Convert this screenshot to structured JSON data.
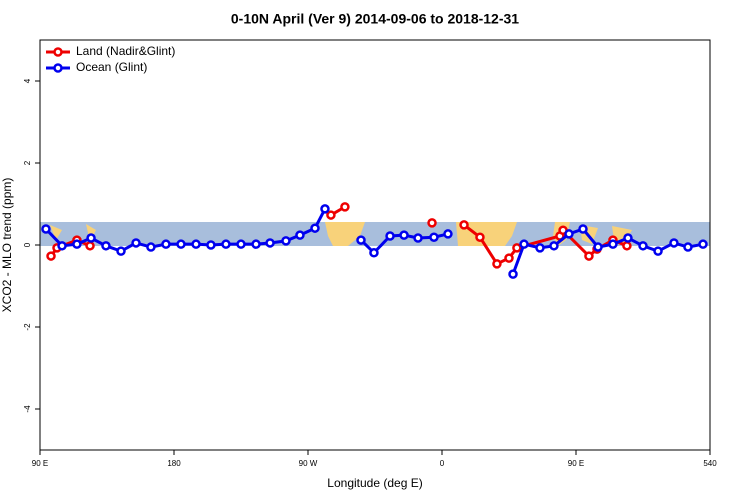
{
  "chart_data": {
    "type": "line",
    "title": "0-10N April (Ver 9)   2014-09-06 to 2018-12-31",
    "x_label": "Longitude (deg E)",
    "y_label": "XCO2 - MLO trend (ppm)",
    "xlim": [
      90,
      540
    ],
    "xticks": [
      {
        "value": 90,
        "label": "90 E"
      },
      180,
      {
        "value": 270,
        "label": "90 W"
      },
      {
        "value": 360,
        "label": "0"
      },
      {
        "value": 450,
        "label": "90 E"
      },
      540
    ],
    "ylim": [
      -5,
      5
    ],
    "yticks": [
      -4,
      -2,
      0,
      2,
      4
    ],
    "legend": "top-left",
    "series": [
      {
        "name": "Land (Nadir&Glint)",
        "color": "#ee0000",
        "x": [
          97.4,
          101.4,
          114.8,
          123.6,
          null,
          285.4,
          294.8,
          null,
          353.3,
          null,
          374.8,
          385.5,
          396.9,
          405.0,
          410.3,
          439.2,
          441.3,
          458.7,
          464.1,
          474.8,
          484.2
        ],
        "values": [
          -0.27,
          -0.07,
          0.12,
          -0.02,
          null,
          0.73,
          0.93,
          null,
          0.54,
          null,
          0.49,
          0.19,
          -0.46,
          -0.32,
          -0.07,
          0.22,
          0.36,
          -0.27,
          -0.1,
          0.12,
          -0.02
        ]
      },
      {
        "name": "Ocean (Glint)",
        "color": "#0000ee",
        "x": [
          94.0,
          104.8,
          114.8,
          124.3,
          134.3,
          144.4,
          154.5,
          164.5,
          174.6,
          184.7,
          194.8,
          204.8,
          214.9,
          225.0,
          235.1,
          244.5,
          255.2,
          264.6,
          274.7,
          281.4,
          null,
          305.6,
          314.3,
          325.1,
          334.5,
          343.9,
          354.6,
          364.0,
          null,
          407.7,
          415.1,
          425.8,
          435.2,
          445.3,
          454.7,
          464.8,
          474.8,
          484.9,
          495.0,
          505.1,
          515.8,
          525.2,
          535.3
        ],
        "values": [
          0.39,
          -0.02,
          0.02,
          0.17,
          -0.02,
          -0.15,
          0.05,
          -0.05,
          0.02,
          0.02,
          0.02,
          0.0,
          0.02,
          0.02,
          0.02,
          0.05,
          0.1,
          0.24,
          0.41,
          0.88,
          null,
          0.12,
          -0.19,
          0.22,
          0.24,
          0.17,
          0.19,
          0.27,
          null,
          -0.71,
          0.02,
          -0.07,
          -0.02,
          0.27,
          0.39,
          -0.05,
          0.02,
          0.17,
          -0.02,
          -0.15,
          0.05,
          -0.05,
          0.02
        ]
      }
    ]
  }
}
